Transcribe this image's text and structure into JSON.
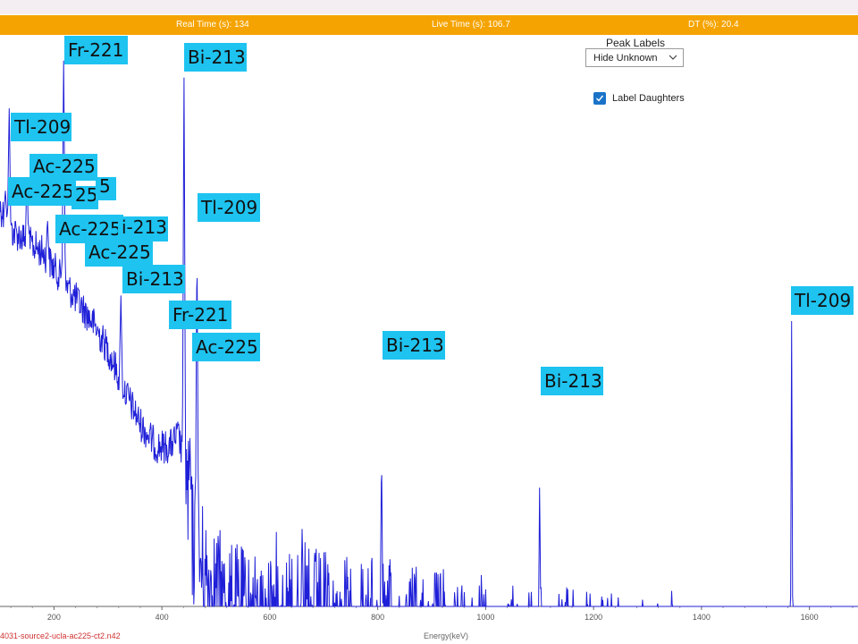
{
  "status": {
    "real_time": "Real Time (s): 134",
    "live_time": "Live Time (s): 106.7",
    "dead_time": "DT (%): 20.4"
  },
  "controls": {
    "peak_labels_title": "Peak Labels",
    "dropdown_value": "Hide Unknown",
    "label_daughters": "Label Daughters",
    "label_daughters_checked": true
  },
  "footer": {
    "filename": "4031-source2-ucla-ac225-ct2.n42"
  },
  "colors": {
    "status_bar": "#f5a300",
    "spectrum": "#1f1fd8",
    "label_bg": "#1ec3f0"
  },
  "chart_data": {
    "type": "line",
    "title": "",
    "xlabel": "Energy(keV)",
    "ylabel": "",
    "xlim": [
      100,
      1690
    ],
    "x_ticks": [
      200,
      400,
      600,
      800,
      1000,
      1200,
      1400,
      1600
    ],
    "log_scale_y": true,
    "continuum": [
      [
        100,
        0.3
      ],
      [
        120,
        0.34
      ],
      [
        150,
        0.36
      ],
      [
        180,
        0.38
      ],
      [
        210,
        0.42
      ],
      [
        240,
        0.46
      ],
      [
        270,
        0.5
      ],
      [
        300,
        0.55
      ],
      [
        330,
        0.62
      ],
      [
        360,
        0.68
      ],
      [
        390,
        0.72
      ],
      [
        415,
        0.72
      ],
      [
        430,
        0.7
      ],
      [
        440,
        0.74
      ],
      [
        455,
        0.88
      ],
      [
        480,
        0.95
      ],
      [
        520,
        1.0
      ],
      [
        560,
        1.02
      ],
      [
        620,
        1.05
      ],
      [
        700,
        1.08
      ],
      [
        850,
        1.1
      ],
      [
        1000,
        1.12
      ],
      [
        1200,
        1.15
      ],
      [
        1350,
        1.18
      ],
      [
        1450,
        1.24
      ],
      [
        1550,
        1.3
      ],
      [
        1690,
        1.35
      ]
    ],
    "peaks": [
      {
        "energy": 117,
        "label": "Tl-209",
        "height": 0.12
      },
      {
        "energy": 218,
        "label": "Fr-221",
        "height": 0.03
      },
      {
        "energy": 441,
        "label": "Bi-213",
        "height": 0.05
      },
      {
        "energy": 465,
        "label": "Tl-209",
        "height": 0.35
      },
      {
        "energy": 440,
        "label": "Fr-221",
        "height": 0.62
      },
      {
        "energy": 452,
        "label": "Ac-225",
        "height": 0.7
      },
      {
        "energy": 807,
        "label": "Bi-213",
        "height": 0.72
      },
      {
        "energy": 1100,
        "label": "Bi-213",
        "height": 0.78
      },
      {
        "energy": 1567,
        "label": "Tl-209",
        "height": 0.5
      },
      {
        "energy": 150,
        "label": "Ac-225",
        "height": 0.24
      },
      {
        "energy": 110,
        "label": "Ac-225",
        "height": 0.27
      },
      {
        "energy": 188,
        "label": "Ac-225",
        "height": 0.32
      },
      {
        "energy": 216,
        "label": "Ac-225",
        "height": 0.38
      },
      {
        "energy": 324,
        "label": "Bi-213",
        "height": 0.45
      }
    ],
    "minor_peaks": [
      {
        "energy": 660,
        "height": 0.85
      },
      {
        "energy": 1000,
        "height": 0.97
      },
      {
        "energy": 1345,
        "height": 0.95
      }
    ],
    "peak_labels": [
      {
        "text": "Fr-221",
        "energy": 218
      },
      {
        "text": "Bi-213",
        "energy": 441
      },
      {
        "text": "Tl-209",
        "energy": 117
      },
      {
        "text": "Ac-225",
        "energy": 150
      },
      {
        "text": "Ac-225",
        "energy": 110
      },
      {
        "text": "25",
        "energy": 170
      },
      {
        "text": "5",
        "energy": 200
      },
      {
        "text": "Tl-209",
        "energy": 465
      },
      {
        "text": "Ac-225",
        "energy": 188
      },
      {
        "text": "i-213",
        "energy": 238
      },
      {
        "text": "Ac-225",
        "energy": 216
      },
      {
        "text": "Bi-213",
        "energy": 324
      },
      {
        "text": "Fr-221",
        "energy": 440
      },
      {
        "text": "Ac-225",
        "energy": 452
      },
      {
        "text": "Bi-213",
        "energy": 807
      },
      {
        "text": "Bi-213",
        "energy": 1100
      },
      {
        "text": "Tl-209",
        "energy": 1567
      }
    ]
  }
}
